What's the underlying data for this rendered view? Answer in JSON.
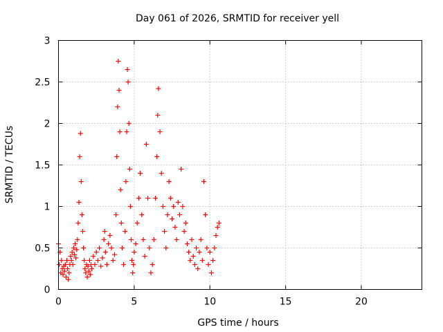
{
  "chart_data": {
    "type": "scatter",
    "title": "Day 061 of 2026, SRMTID for receiver yell",
    "xlabel": "GPS time / hours",
    "ylabel": "SRMTID / TECUs",
    "xlim": [
      0,
      24
    ],
    "ylim": [
      0,
      3
    ],
    "x_ticks": [
      0,
      5,
      10,
      15,
      20
    ],
    "x_tick_labels": [
      "0",
      "5",
      "10",
      "15",
      "20"
    ],
    "y_ticks": [
      0,
      0.5,
      1,
      1.5,
      2,
      2.5,
      3
    ],
    "y_tick_labels": [
      "0",
      "0.5",
      "1",
      "1.5",
      "2",
      "2.5",
      "3"
    ],
    "grid": true,
    "marker": "+",
    "series": [
      {
        "name": "SRMTID",
        "color": "#ff0000",
        "points": [
          [
            0.0,
            0.55
          ],
          [
            0.05,
            0.3
          ],
          [
            0.1,
            0.45
          ],
          [
            0.15,
            0.2
          ],
          [
            0.2,
            0.35
          ],
          [
            0.25,
            0.25
          ],
          [
            0.3,
            0.18
          ],
          [
            0.35,
            0.28
          ],
          [
            0.4,
            0.22
          ],
          [
            0.45,
            0.3
          ],
          [
            0.5,
            0.15
          ],
          [
            0.55,
            0.35
          ],
          [
            0.6,
            0.25
          ],
          [
            0.65,
            0.12
          ],
          [
            0.7,
            0.2
          ],
          [
            0.75,
            0.3
          ],
          [
            0.8,
            0.4
          ],
          [
            0.85,
            0.35
          ],
          [
            0.9,
            0.45
          ],
          [
            0.95,
            0.3
          ],
          [
            1.0,
            0.5
          ],
          [
            1.05,
            0.42
          ],
          [
            1.1,
            0.55
          ],
          [
            1.15,
            0.38
          ],
          [
            1.2,
            0.48
          ],
          [
            1.25,
            0.6
          ],
          [
            1.3,
            0.8
          ],
          [
            1.35,
            1.05
          ],
          [
            1.4,
            1.6
          ],
          [
            1.45,
            1.88
          ],
          [
            1.5,
            1.3
          ],
          [
            1.55,
            0.9
          ],
          [
            1.6,
            0.7
          ],
          [
            1.65,
            0.5
          ],
          [
            1.7,
            0.35
          ],
          [
            1.75,
            0.25
          ],
          [
            1.8,
            0.2
          ],
          [
            1.85,
            0.3
          ],
          [
            1.9,
            0.15
          ],
          [
            1.95,
            0.28
          ],
          [
            2.0,
            0.22
          ],
          [
            2.05,
            0.35
          ],
          [
            2.1,
            0.18
          ],
          [
            2.15,
            0.3
          ],
          [
            2.2,
            0.25
          ],
          [
            2.3,
            0.4
          ],
          [
            2.4,
            0.3
          ],
          [
            2.5,
            0.45
          ],
          [
            2.6,
            0.35
          ],
          [
            2.7,
            0.5
          ],
          [
            2.8,
            0.28
          ],
          [
            2.9,
            0.38
          ],
          [
            3.0,
            0.6
          ],
          [
            3.05,
            0.7
          ],
          [
            3.1,
            0.45
          ],
          [
            3.2,
            0.3
          ],
          [
            3.3,
            0.55
          ],
          [
            3.4,
            0.65
          ],
          [
            3.5,
            0.5
          ],
          [
            3.6,
            0.35
          ],
          [
            3.7,
            0.42
          ],
          [
            3.8,
            0.9
          ],
          [
            3.85,
            1.6
          ],
          [
            3.9,
            2.2
          ],
          [
            3.95,
            2.75
          ],
          [
            4.0,
            2.4
          ],
          [
            4.05,
            1.9
          ],
          [
            4.1,
            1.2
          ],
          [
            4.15,
            0.8
          ],
          [
            4.2,
            0.5
          ],
          [
            4.3,
            0.3
          ],
          [
            4.4,
            0.7
          ],
          [
            4.45,
            1.3
          ],
          [
            4.5,
            1.9
          ],
          [
            4.55,
            2.65
          ],
          [
            4.6,
            2.5
          ],
          [
            4.65,
            2.0
          ],
          [
            4.7,
            1.45
          ],
          [
            4.75,
            1.0
          ],
          [
            4.8,
            0.6
          ],
          [
            4.85,
            0.35
          ],
          [
            4.9,
            0.2
          ],
          [
            4.95,
            0.3
          ],
          [
            5.0,
            0.45
          ],
          [
            5.1,
            0.55
          ],
          [
            5.2,
            0.8
          ],
          [
            5.3,
            1.1
          ],
          [
            5.4,
            1.4
          ],
          [
            5.5,
            0.9
          ],
          [
            5.6,
            0.6
          ],
          [
            5.7,
            0.4
          ],
          [
            5.8,
            1.75
          ],
          [
            5.9,
            1.1
          ],
          [
            6.0,
            0.5
          ],
          [
            6.1,
            0.2
          ],
          [
            6.2,
            0.3
          ],
          [
            6.3,
            0.6
          ],
          [
            6.4,
            1.1
          ],
          [
            6.5,
            1.6
          ],
          [
            6.55,
            2.1
          ],
          [
            6.6,
            2.42
          ],
          [
            6.7,
            1.9
          ],
          [
            6.8,
            1.4
          ],
          [
            6.9,
            1.0
          ],
          [
            7.0,
            0.7
          ],
          [
            7.1,
            0.5
          ],
          [
            7.2,
            0.9
          ],
          [
            7.3,
            1.3
          ],
          [
            7.4,
            1.1
          ],
          [
            7.5,
            0.85
          ],
          [
            7.6,
            1.0
          ],
          [
            7.7,
            0.75
          ],
          [
            7.8,
            0.6
          ],
          [
            7.9,
            1.05
          ],
          [
            8.0,
            0.9
          ],
          [
            8.1,
            1.45
          ],
          [
            8.2,
            1.0
          ],
          [
            8.3,
            0.7
          ],
          [
            8.4,
            0.8
          ],
          [
            8.5,
            0.55
          ],
          [
            8.6,
            0.45
          ],
          [
            8.7,
            0.35
          ],
          [
            8.8,
            0.6
          ],
          [
            8.9,
            0.4
          ],
          [
            9.0,
            0.3
          ],
          [
            9.1,
            0.5
          ],
          [
            9.2,
            0.25
          ],
          [
            9.3,
            0.45
          ],
          [
            9.4,
            0.6
          ],
          [
            9.5,
            0.35
          ],
          [
            9.6,
            1.3
          ],
          [
            9.7,
            0.9
          ],
          [
            9.8,
            0.5
          ],
          [
            9.9,
            0.3
          ],
          [
            10.0,
            0.45
          ],
          [
            10.1,
            0.2
          ],
          [
            10.2,
            0.35
          ],
          [
            10.3,
            0.5
          ],
          [
            10.4,
            0.65
          ],
          [
            10.5,
            0.75
          ],
          [
            10.6,
            0.8
          ]
        ]
      }
    ]
  }
}
